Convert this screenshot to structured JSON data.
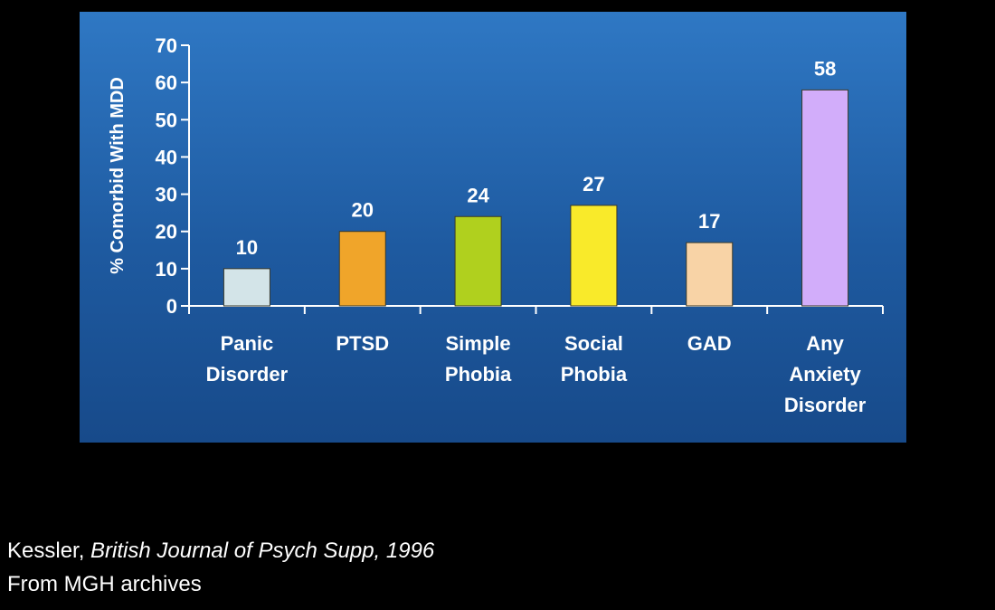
{
  "chart_data": {
    "type": "bar",
    "categories": [
      [
        "Panic",
        "Disorder"
      ],
      [
        "PTSD"
      ],
      [
        "Simple",
        "Phobia"
      ],
      [
        "Social",
        "Phobia"
      ],
      [
        "GAD"
      ],
      [
        "Any",
        "Anxiety",
        "Disorder"
      ]
    ],
    "values": [
      10,
      20,
      24,
      27,
      17,
      58
    ],
    "data_labels": [
      "10",
      "20",
      "24",
      "27",
      "17",
      "58"
    ],
    "bar_colors": [
      "#d3e4e8",
      "#f0a52a",
      "#b0d01e",
      "#f9ea2a",
      "#f8d3a6",
      "#d2adfa"
    ],
    "ylabel": "% Comorbid With MDD",
    "xlabel": "",
    "ylim": [
      0,
      70
    ],
    "yticks": [
      0,
      10,
      20,
      30,
      40,
      50,
      60,
      70
    ],
    "grid": false,
    "legend": "none"
  },
  "colors": {
    "panel_top": "#2f78c4",
    "panel_bottom": "#174a8a",
    "axis": "#ffffff",
    "text": "#ffffff",
    "page_background": "#000000"
  },
  "citation": {
    "author": "Kessler, ",
    "source": "British Journal of Psych Supp, 1996",
    "archive": "From MGH archives"
  }
}
